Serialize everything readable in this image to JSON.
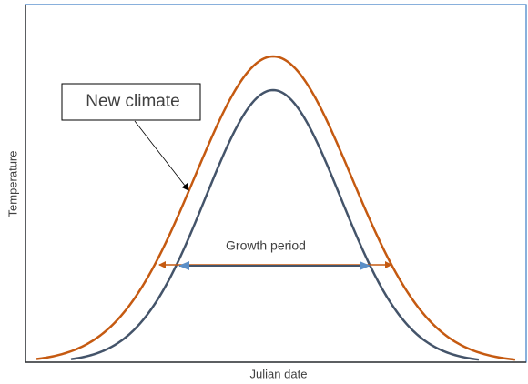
{
  "x_axis_label": "Julian date",
  "y_axis_label": "Temperature",
  "annotation": "New climate",
  "period_label": "Growth period"
}
